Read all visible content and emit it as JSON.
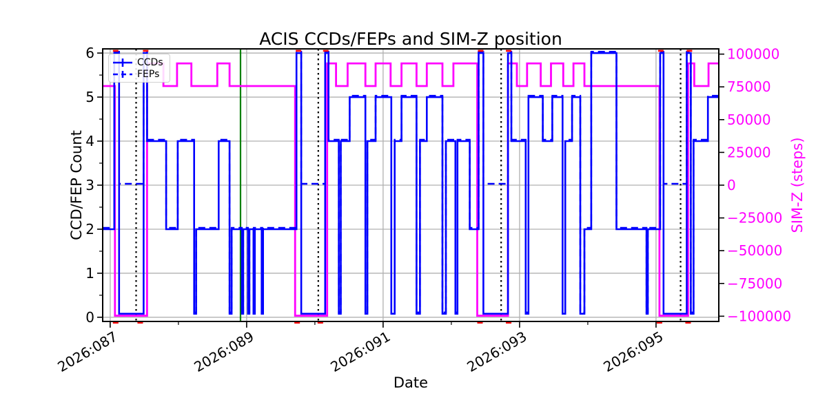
{
  "title": "ACIS CCDs/FEPs and SIM-Z position",
  "axes": {
    "x": {
      "label": "Date",
      "range_days": [
        86.89,
        95.92
      ],
      "major_ticks": [
        {
          "day": 87,
          "label": "2026:087"
        },
        {
          "day": 89,
          "label": "2026:089"
        },
        {
          "day": 91,
          "label": "2026:091"
        },
        {
          "day": 93,
          "label": "2026:093"
        },
        {
          "day": 95,
          "label": "2026:095"
        }
      ],
      "minor_tick_days": [
        88,
        90,
        92,
        94
      ],
      "tick_label_rotation_deg": -30
    },
    "y_left": {
      "label": "CCD/FEP Count",
      "range": [
        -0.095,
        6.095
      ],
      "major_ticks": [
        0,
        1,
        2,
        3,
        4,
        5,
        6
      ],
      "minor_tick_step": 0.5,
      "color": "#000000"
    },
    "y_right": {
      "label": "SIM-Z (steps)",
      "range": [
        -104000,
        104000
      ],
      "major_ticks": [
        {
          "value": 100000,
          "label": "100000"
        },
        {
          "value": 75000,
          "label": "75000"
        },
        {
          "value": 50000,
          "label": "50000"
        },
        {
          "value": 25000,
          "label": "25000"
        },
        {
          "value": 0,
          "label": "0"
        },
        {
          "value": -25000,
          "label": "−25000"
        },
        {
          "value": -50000,
          "label": "−50000"
        },
        {
          "value": -75000,
          "label": "−75000"
        },
        {
          "value": -100000,
          "label": "−100000"
        }
      ],
      "color": "#ff00ff"
    }
  },
  "legend": {
    "items": [
      {
        "label": "CCDs",
        "style": "solid"
      },
      {
        "label": "FEPs",
        "style": "dashed"
      }
    ]
  },
  "colors": {
    "ccd_line": "#0000ff",
    "fep_line": "#0000ff",
    "simz_line": "#ff00ff",
    "grid": "#b0b0b0",
    "spine": "#000000",
    "dotted_vline": "#000000",
    "green_vline": "#008000",
    "red_marker": "#ff0000",
    "background": "#ffffff"
  },
  "chart_data": {
    "type": "line",
    "note": "step-post series; x in day-of-year 2026, plateaus run until next step",
    "xlabel": "Date",
    "x_range": [
      86.89,
      95.92
    ],
    "ylim_left": [
      -0.095,
      6.095
    ],
    "ylim_right": [
      -104000,
      104000
    ],
    "grid": true,
    "legend_position": "upper-left",
    "series": [
      {
        "name": "CCDs",
        "axis": "left",
        "style": "solid",
        "steps": [
          [
            86.89,
            2
          ],
          [
            87.06,
            6
          ],
          [
            87.13,
            0.08
          ],
          [
            87.49,
            6
          ],
          [
            87.54,
            4
          ],
          [
            87.82,
            2
          ],
          [
            87.99,
            4
          ],
          [
            88.23,
            0.08
          ],
          [
            88.26,
            2
          ],
          [
            88.59,
            4
          ],
          [
            88.75,
            0.08
          ],
          [
            88.78,
            2
          ],
          [
            88.93,
            0.08
          ],
          [
            88.95,
            2
          ],
          [
            89.02,
            0.08
          ],
          [
            89.04,
            2
          ],
          [
            89.1,
            0.08
          ],
          [
            89.12,
            2
          ],
          [
            89.22,
            0.08
          ],
          [
            89.24,
            2
          ],
          [
            89.73,
            6
          ],
          [
            89.8,
            0.08
          ],
          [
            90.15,
            6
          ],
          [
            90.2,
            4
          ],
          [
            90.35,
            0.08
          ],
          [
            90.38,
            4
          ],
          [
            90.51,
            5
          ],
          [
            90.74,
            0.08
          ],
          [
            90.77,
            4
          ],
          [
            90.89,
            5
          ],
          [
            91.12,
            0.08
          ],
          [
            91.17,
            4
          ],
          [
            91.27,
            5
          ],
          [
            91.49,
            0.08
          ],
          [
            91.54,
            4
          ],
          [
            91.64,
            5
          ],
          [
            91.87,
            0.08
          ],
          [
            91.92,
            4
          ],
          [
            92.06,
            0.08
          ],
          [
            92.09,
            4
          ],
          [
            92.27,
            2
          ],
          [
            92.4,
            6
          ],
          [
            92.47,
            0.08
          ],
          [
            92.83,
            6
          ],
          [
            92.88,
            4
          ],
          [
            93.09,
            0.08
          ],
          [
            93.13,
            5
          ],
          [
            93.34,
            4
          ],
          [
            93.48,
            5
          ],
          [
            93.63,
            0.08
          ],
          [
            93.67,
            4
          ],
          [
            93.77,
            5
          ],
          [
            93.89,
            0.08
          ],
          [
            93.95,
            2
          ],
          [
            94.05,
            6
          ],
          [
            94.42,
            2
          ],
          [
            94.86,
            0.08
          ],
          [
            94.88,
            2
          ],
          [
            95.06,
            6
          ],
          [
            95.11,
            0.08
          ],
          [
            95.45,
            6
          ],
          [
            95.51,
            0.08
          ],
          [
            95.55,
            4
          ],
          [
            95.76,
            5
          ]
        ]
      },
      {
        "name": "FEPs",
        "axis": "left",
        "style": "dashed",
        "steps": [
          [
            86.89,
            2
          ],
          [
            87.06,
            6
          ],
          [
            87.13,
            3
          ],
          [
            87.49,
            6
          ],
          [
            87.54,
            4
          ],
          [
            87.82,
            2
          ],
          [
            87.99,
            4
          ],
          [
            88.23,
            0.08
          ],
          [
            88.26,
            2
          ],
          [
            88.59,
            4
          ],
          [
            88.75,
            0.08
          ],
          [
            88.78,
            2
          ],
          [
            88.93,
            0.08
          ],
          [
            88.95,
            2
          ],
          [
            89.02,
            0.08
          ],
          [
            89.04,
            2
          ],
          [
            89.1,
            0.08
          ],
          [
            89.12,
            2
          ],
          [
            89.22,
            0.08
          ],
          [
            89.24,
            2
          ],
          [
            89.73,
            6
          ],
          [
            89.8,
            3
          ],
          [
            90.15,
            6
          ],
          [
            90.2,
            4
          ],
          [
            90.35,
            0.08
          ],
          [
            90.38,
            4
          ],
          [
            90.51,
            5
          ],
          [
            90.74,
            0.08
          ],
          [
            90.77,
            4
          ],
          [
            90.89,
            5
          ],
          [
            91.12,
            0.08
          ],
          [
            91.17,
            4
          ],
          [
            91.27,
            5
          ],
          [
            91.49,
            0.08
          ],
          [
            91.54,
            4
          ],
          [
            91.64,
            5
          ],
          [
            91.87,
            0.08
          ],
          [
            91.92,
            4
          ],
          [
            92.06,
            0.08
          ],
          [
            92.09,
            4
          ],
          [
            92.27,
            2
          ],
          [
            92.4,
            6
          ],
          [
            92.47,
            3
          ],
          [
            92.83,
            6
          ],
          [
            92.88,
            4
          ],
          [
            93.09,
            0.08
          ],
          [
            93.13,
            5
          ],
          [
            93.34,
            4
          ],
          [
            93.48,
            5
          ],
          [
            93.63,
            0.08
          ],
          [
            93.67,
            4
          ],
          [
            93.77,
            5
          ],
          [
            93.89,
            0.08
          ],
          [
            93.95,
            2
          ],
          [
            94.05,
            6
          ],
          [
            94.42,
            2
          ],
          [
            94.86,
            0.08
          ],
          [
            94.88,
            2
          ],
          [
            95.06,
            6
          ],
          [
            95.11,
            3
          ],
          [
            95.45,
            6
          ],
          [
            95.51,
            0.08
          ],
          [
            95.55,
            4
          ],
          [
            95.76,
            5
          ]
        ]
      },
      {
        "name": "SIM-Z",
        "axis": "right",
        "style": "solid",
        "steps": [
          [
            86.89,
            75624
          ],
          [
            87.07,
            -99616
          ],
          [
            87.54,
            92903
          ],
          [
            87.78,
            75624
          ],
          [
            87.98,
            92903
          ],
          [
            88.19,
            75624
          ],
          [
            88.57,
            92903
          ],
          [
            88.75,
            75624
          ],
          [
            89.71,
            -99616
          ],
          [
            90.18,
            92903
          ],
          [
            90.31,
            75624
          ],
          [
            90.48,
            92903
          ],
          [
            90.74,
            75624
          ],
          [
            90.89,
            92903
          ],
          [
            91.11,
            75624
          ],
          [
            91.27,
            92903
          ],
          [
            91.49,
            75624
          ],
          [
            91.64,
            92903
          ],
          [
            91.87,
            75624
          ],
          [
            92.03,
            92903
          ],
          [
            92.38,
            -99616
          ],
          [
            92.83,
            92903
          ],
          [
            92.96,
            75624
          ],
          [
            93.11,
            92903
          ],
          [
            93.31,
            75624
          ],
          [
            93.46,
            92903
          ],
          [
            93.64,
            75624
          ],
          [
            93.79,
            92903
          ],
          [
            93.95,
            75624
          ],
          [
            95.05,
            -99616
          ],
          [
            95.47,
            92903
          ],
          [
            95.56,
            75624
          ],
          [
            95.77,
            92903
          ]
        ]
      }
    ],
    "vlines": {
      "dotted_black_days": [
        87.38,
        90.05,
        92.73,
        95.36
      ],
      "green_solid_day": 88.91
    },
    "red_markers": {
      "top_days": [
        87.08,
        87.52,
        89.76,
        90.16,
        92.43,
        92.84,
        95.07,
        95.49
      ],
      "bottom_days": [
        87.08,
        87.44,
        89.74,
        90.08,
        92.42,
        92.84,
        95.05,
        95.47
      ]
    }
  }
}
